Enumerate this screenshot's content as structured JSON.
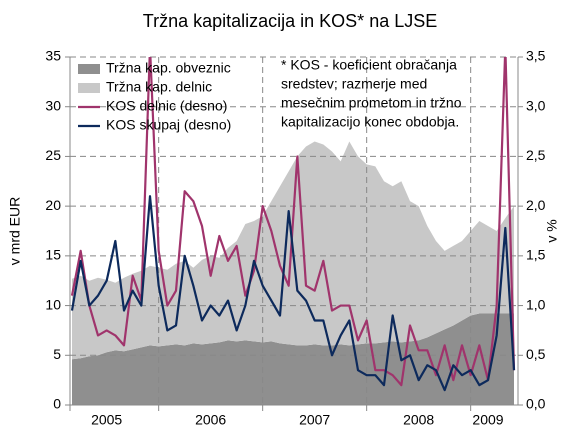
{
  "chart_data": {
    "type": "stacked_area_line",
    "title": "Tržna kapitalizacija in KOS* na LJSE",
    "y_label": "v mrd EUR",
    "y2_label": "v %",
    "annotation": [
      "* KOS - koeficient obračanja",
      "sredstev; razmerje med",
      "mesečnim prometom in tržno",
      "kapitalizacijo konec obdobja."
    ],
    "categories": [
      null,
      null,
      null,
      null,
      "2005",
      null,
      null,
      null,
      null,
      null,
      null,
      null,
      null,
      null,
      null,
      null,
      "2006",
      null,
      null,
      null,
      null,
      null,
      null,
      null,
      null,
      null,
      null,
      null,
      "2007",
      null,
      null,
      null,
      null,
      null,
      null,
      null,
      null,
      null,
      null,
      null,
      "2008",
      null,
      null,
      null,
      null,
      null,
      null,
      null,
      "2009",
      null,
      null,
      null
    ],
    "series": [
      {
        "name": "Tržna kap. obveznic",
        "kind": "area",
        "color": "#8f8f8f",
        "values": [
          4.6,
          4.7,
          4.9,
          5,
          5.3,
          5.5,
          5.4,
          5.6,
          5.8,
          6,
          5.9,
          6,
          6.1,
          6,
          6.2,
          6.1,
          6.2,
          6.3,
          6.5,
          6.4,
          6.5,
          6.4,
          6.3,
          6.4,
          6.2,
          6.1,
          6,
          6,
          6.1,
          6,
          6,
          6.1,
          6,
          6.1,
          6.2,
          6.2,
          6.3,
          6.4,
          6.3,
          6.4,
          6.5,
          6.8,
          7.2,
          7.6,
          8,
          8.5,
          9,
          9.2,
          9.2,
          9.2,
          9.2,
          9.2
        ]
      },
      {
        "name": "Tržna kap. delnic",
        "kind": "area",
        "color": "#c8c8c8",
        "values": [
          8.1,
          8.3,
          7.6,
          7.8,
          7.3,
          6.8,
          7.4,
          7.6,
          7.7,
          8,
          7.9,
          7.6,
          8.1,
          8.5,
          7.6,
          8.5,
          8.8,
          8.5,
          9.3,
          10.1,
          11.7,
          12.1,
          12.7,
          14.1,
          15.8,
          17.4,
          19,
          20,
          20.4,
          20.2,
          19.5,
          18.4,
          20.5,
          18.9,
          18,
          17.8,
          16.2,
          15.6,
          16.2,
          14.1,
          13.5,
          11.2,
          9.3,
          7.9,
          8,
          8,
          8.5,
          9.3,
          8.8,
          8.3,
          9.6,
          10.8
        ]
      },
      {
        "name": "KOS delnic (desno)",
        "kind": "line",
        "axis": "y2",
        "color": "#a0346c",
        "values": [
          1.1,
          1.55,
          1.0,
          0.7,
          0.75,
          0.7,
          0.6,
          1.3,
          1.05,
          3.6,
          1.55,
          1.0,
          1.15,
          2.15,
          2.05,
          1.8,
          1.3,
          1.7,
          1.45,
          1.6,
          1.1,
          1.35,
          2.0,
          1.75,
          1.4,
          1.2,
          2.5,
          1.2,
          1.15,
          1.45,
          0.95,
          1.0,
          1.0,
          0.65,
          0.85,
          0.35,
          0.35,
          0.3,
          0.2,
          0.8,
          0.55,
          0.55,
          0.3,
          0.6,
          0.25,
          0.6,
          0.3,
          0.6,
          0.25,
          1.0,
          3.6,
          0.35
        ]
      },
      {
        "name": "KOS skupaj (desno)",
        "kind": "line",
        "axis": "y2",
        "color": "#0d2a5c",
        "values": [
          0.95,
          1.45,
          1.0,
          1.1,
          1.25,
          1.65,
          0.95,
          1.15,
          1.0,
          2.1,
          1.2,
          0.75,
          0.8,
          1.5,
          1.2,
          0.85,
          1.0,
          0.9,
          1.05,
          0.75,
          1.0,
          1.45,
          1.2,
          1.05,
          0.9,
          1.95,
          1.15,
          1.05,
          0.85,
          0.85,
          0.5,
          0.7,
          0.85,
          0.35,
          0.3,
          0.3,
          0.2,
          0.9,
          0.45,
          0.5,
          0.25,
          0.4,
          0.35,
          0.15,
          0.4,
          0.3,
          0.35,
          0.2,
          0.25,
          0.7,
          1.78,
          0.35
        ]
      }
    ],
    "ylim": [
      0,
      35
    ],
    "yticks": [
      0,
      5,
      10,
      15,
      20,
      25,
      30,
      35
    ],
    "y2lim": [
      0,
      3.5
    ],
    "y2ticks": [
      {
        "value": 0,
        "label": "0,0"
      },
      {
        "value": 0.5,
        "label": "0,5"
      },
      {
        "value": 1,
        "label": "1,0"
      },
      {
        "value": 1.5,
        "label": "1,5"
      },
      {
        "value": 2,
        "label": "2,0"
      },
      {
        "value": 2.5,
        "label": "2,5"
      },
      {
        "value": 3,
        "label": "3,0"
      },
      {
        "value": 3.5,
        "label": "3,5"
      }
    ],
    "grid": true,
    "legend": "upper left"
  }
}
